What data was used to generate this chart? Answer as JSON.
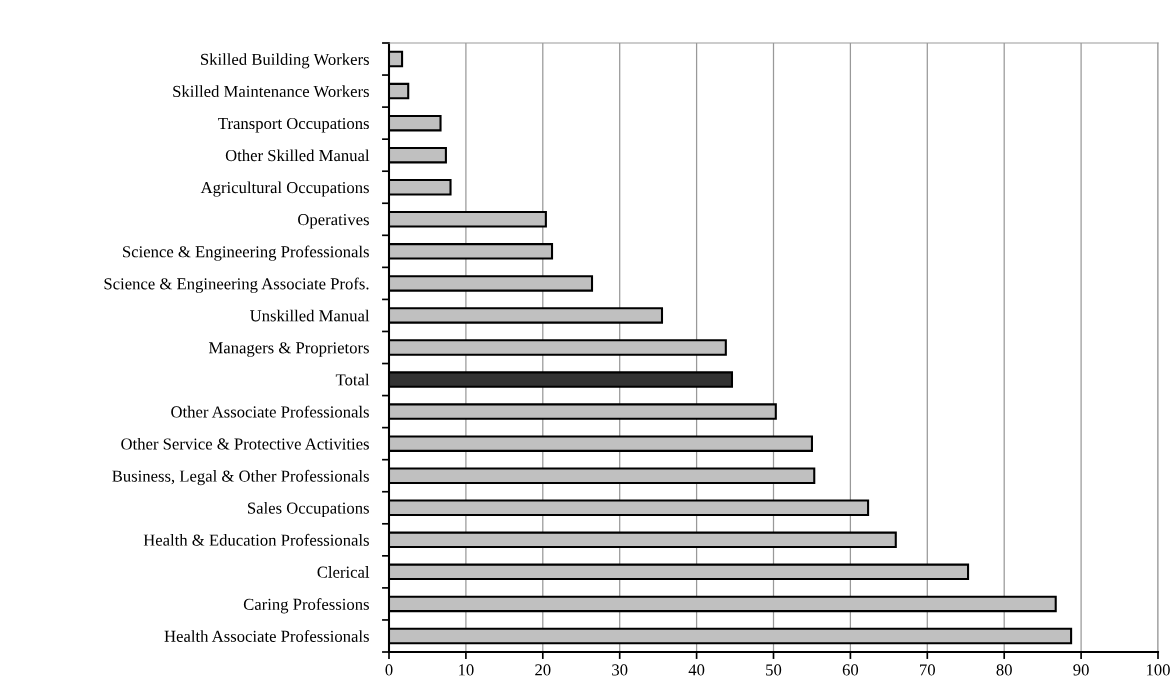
{
  "chart_data": {
    "type": "bar",
    "orientation": "horizontal",
    "categories": [
      "Skilled Building Workers",
      "Skilled Maintenance Workers",
      "Transport Occupations",
      "Other Skilled Manual",
      "Agricultural Occupations",
      "Operatives",
      "Science & Engineering Professionals",
      "Science & Engineering Associate Profs.",
      "Unskilled Manual",
      "Managers & Proprietors",
      "Total",
      "Other Associate Professionals",
      "Other Service & Protective Activities",
      "Business, Legal & Other Professionals",
      "Sales Occupations",
      "Health & Education Professionals",
      "Clerical",
      "Caring Professions",
      "Health Associate Professionals"
    ],
    "values": [
      1.7,
      2.5,
      6.7,
      7.4,
      8.0,
      20.4,
      21.2,
      26.4,
      35.5,
      43.8,
      44.6,
      50.3,
      55.0,
      55.3,
      62.3,
      65.9,
      75.3,
      86.7,
      88.7
    ],
    "colors": [
      "#c0c0c0",
      "#c0c0c0",
      "#c0c0c0",
      "#c0c0c0",
      "#c0c0c0",
      "#c0c0c0",
      "#c0c0c0",
      "#c0c0c0",
      "#c0c0c0",
      "#c0c0c0",
      "#333333",
      "#c0c0c0",
      "#c0c0c0",
      "#c0c0c0",
      "#c0c0c0",
      "#c0c0c0",
      "#c0c0c0",
      "#c0c0c0",
      "#c0c0c0"
    ],
    "xlim": [
      0,
      100
    ],
    "xticks": [
      0,
      10,
      20,
      30,
      40,
      50,
      60,
      70,
      80,
      90,
      100
    ],
    "grid": "x",
    "legend": false
  }
}
